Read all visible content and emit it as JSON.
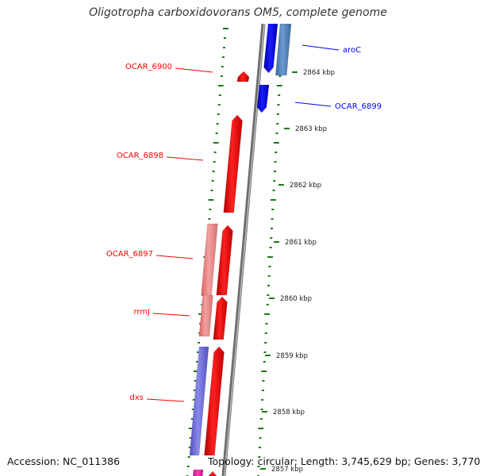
{
  "title": "Oligotropha carboxidovorans OM5, complete genome",
  "footer": {
    "accession": "Accession: NC_011386",
    "topology": "Topology: circular; Length: 3,745,629 bp; Genes: 3,770"
  },
  "colors": {
    "forward_gene": "#ff0000",
    "forward_gene_light": "#f08080",
    "reverse_gene": "#0000ff",
    "reverse_gene_light": "#4a7fb5",
    "pink_gene": "#ff1493",
    "backbone": "#888888",
    "tick": "#1a7a1a"
  },
  "gene_labels": [
    {
      "text": "OCAR_6900",
      "color": "#ff0000"
    },
    {
      "text": "OCAR_6898",
      "color": "#ff0000"
    },
    {
      "text": "OCAR_6897",
      "color": "#ff0000"
    },
    {
      "text": "rrmJ",
      "color": "#ff0000"
    },
    {
      "text": "dxs",
      "color": "#ff0000"
    },
    {
      "text": "aroC",
      "color": "#0000ff"
    },
    {
      "text": "OCAR_6899",
      "color": "#0000ff"
    }
  ],
  "kbp_labels": [
    "2864 kbp",
    "2863 kbp",
    "2862 kbp",
    "2861 kbp",
    "2860 kbp",
    "2859 kbp",
    "2858 kbp",
    "2857 kbp"
  ]
}
